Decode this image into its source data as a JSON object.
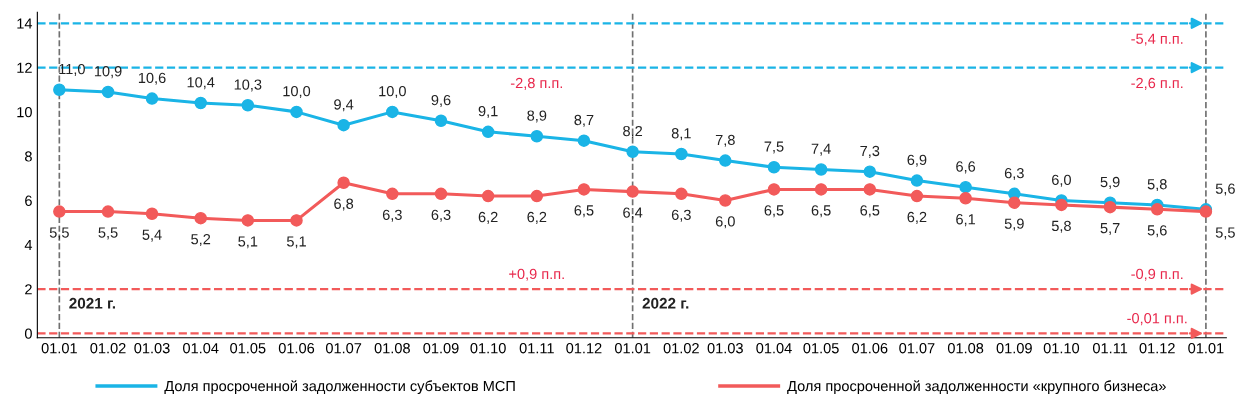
{
  "chart_data": {
    "type": "line",
    "x": [
      "2021-01-01",
      "2021-02-01",
      "2021-03-01",
      "2021-04-01",
      "2021-05-01",
      "2021-06-01",
      "2021-07-01",
      "2021-08-01",
      "2021-09-01",
      "2021-10-01",
      "2021-11-01",
      "2021-12-01",
      "2022-01-01",
      "2022-02-01",
      "2022-03-01",
      "2022-04-01",
      "2022-05-01",
      "2022-06-01",
      "2022-07-01",
      "2022-08-01",
      "2022-09-01",
      "2022-10-01",
      "2022-11-01",
      "2022-12-01",
      "2023-01-01"
    ],
    "series": [
      {
        "name": "Доля просроченной задолженности субъектов МСП",
        "color": "#1ab4e6",
        "values": [
          11.0,
          10.9,
          10.6,
          10.4,
          10.3,
          10.0,
          9.4,
          10.0,
          9.6,
          9.1,
          8.9,
          8.7,
          8.2,
          8.1,
          7.8,
          7.5,
          7.4,
          7.3,
          6.9,
          6.6,
          6.3,
          6.0,
          5.9,
          5.8,
          5.6
        ],
        "value_labels": [
          "11,0",
          "10,9",
          "10,6",
          "10,4",
          "10,3",
          "10,0",
          "9,4",
          "10,0",
          "9,6",
          "9,1",
          "8,9",
          "8,7",
          "8,2",
          "8,1",
          "7,8",
          "7,5",
          "7,4",
          "7,3",
          "6,9",
          "6,6",
          "6,3",
          "6,0",
          "5,9",
          "5,8",
          "5,6"
        ]
      },
      {
        "name": "Доля просроченной задолженности «крупного бизнеса»",
        "color": "#f25a5a",
        "values": [
          5.5,
          5.5,
          5.4,
          5.2,
          5.1,
          5.1,
          6.8,
          6.3,
          6.3,
          6.2,
          6.2,
          6.5,
          6.4,
          6.3,
          6.0,
          6.5,
          6.5,
          6.5,
          6.2,
          6.1,
          5.9,
          5.8,
          5.7,
          5.6,
          5.5
        ],
        "value_labels": [
          "5,5",
          "5,5",
          "5,4",
          "5,2",
          "5,1",
          "5,1",
          "6,8",
          "6,3",
          "6,3",
          "6,2",
          "6,2",
          "6,5",
          "6,4",
          "6,3",
          "6,0",
          "6,5",
          "6,5",
          "6,5",
          "6,2",
          "6,1",
          "5,9",
          "5,8",
          "5,7",
          "5,6",
          "5,5"
        ]
      }
    ],
    "xlim": [
      "2020-12-18",
      "2023-01-14"
    ],
    "xticks": [
      {
        "value": "2021-01-01",
        "label": "01.01"
      },
      {
        "value": "2021-02-01",
        "label": "01.02"
      },
      {
        "value": "2021-03-01",
        "label": "01.03"
      },
      {
        "value": "2021-04-01",
        "label": "01.04"
      },
      {
        "value": "2021-05-01",
        "label": "01.05"
      },
      {
        "value": "2021-06-01",
        "label": "01.06"
      },
      {
        "value": "2021-07-01",
        "label": "01.07"
      },
      {
        "value": "2021-08-01",
        "label": "01.08"
      },
      {
        "value": "2021-09-01",
        "label": "01.09"
      },
      {
        "value": "2021-10-01",
        "label": "01.10"
      },
      {
        "value": "2021-11-01",
        "label": "01.11"
      },
      {
        "value": "2021-12-01",
        "label": "01.12"
      },
      {
        "value": "2022-01-01",
        "label": "01.01"
      },
      {
        "value": "2022-02-01",
        "label": "01.02"
      },
      {
        "value": "2022-03-01",
        "label": "01.03"
      },
      {
        "value": "2022-04-01",
        "label": "01.04"
      },
      {
        "value": "2022-05-01",
        "label": "01.05"
      },
      {
        "value": "2022-06-01",
        "label": "01.06"
      },
      {
        "value": "2022-07-01",
        "label": "01.07"
      },
      {
        "value": "2022-08-01",
        "label": "01.08"
      },
      {
        "value": "2022-09-01",
        "label": "01.09"
      },
      {
        "value": "2022-10-01",
        "label": "01.10"
      },
      {
        "value": "2022-11-01",
        "label": "01.11"
      },
      {
        "value": "2022-12-01",
        "label": "01.12"
      },
      {
        "value": "2023-01-01",
        "label": "01.01"
      }
    ],
    "ylim": [
      -0.2,
      14.5
    ],
    "yticks": [
      0,
      2,
      4,
      6,
      8,
      10,
      12,
      14
    ],
    "marker": "circle",
    "line_style": "solid",
    "grid": false,
    "legend": "bottom",
    "ref_lines": [
      {
        "axis": "x",
        "value": "2021-01-01",
        "color": "#707070",
        "line_style": "dashed"
      },
      {
        "axis": "x",
        "value": "2022-01-01",
        "color": "#707070",
        "line_style": "dashed"
      },
      {
        "axis": "x",
        "value": "2023-01-01",
        "color": "#707070",
        "line_style": "dashed"
      },
      {
        "axis": "y",
        "value": 14,
        "color": "#1ab4e6",
        "line_style": "dashed"
      },
      {
        "axis": "y",
        "value": 12,
        "color": "#1ab4e6",
        "line_style": "dashed"
      },
      {
        "axis": "y",
        "value": 2,
        "color": "#f25a5a",
        "line_style": "dashed"
      },
      {
        "axis": "y",
        "value": 0,
        "color": "#f25a5a",
        "line_style": "dashed"
      }
    ],
    "annotations": [
      {
        "text": "-5,4 п.п.",
        "x": "2022-12-01",
        "y": 14
      },
      {
        "text": "-2,8 п.п.",
        "x": "2021-11-01",
        "y": 12
      },
      {
        "text": "-2,6 п.п.",
        "x": "2022-12-01",
        "y": 12
      },
      {
        "text": "+0,9 п.п.",
        "x": "2021-11-01",
        "y": 2
      },
      {
        "text": "-0,9 п.п.",
        "x": "2022-12-01",
        "y": 2
      },
      {
        "text": "-0,01 п.п.",
        "x": "2022-12-01",
        "y": 0
      },
      "2021 г.",
      "2022 г."
    ]
  }
}
